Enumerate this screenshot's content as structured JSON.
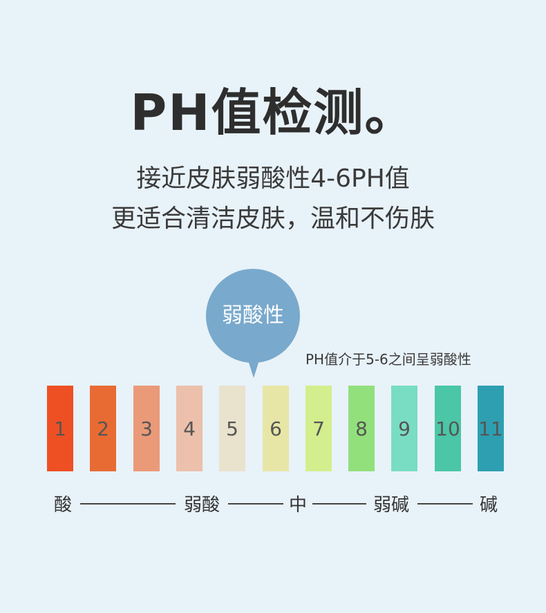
{
  "title": "PH值检测。",
  "subtitle_lines": [
    "接近皮肤弱酸性4-6PH值",
    "更适合清洁皮肤，温和不伤肤"
  ],
  "bubble": {
    "label": "弱酸性",
    "color": "#79a9cc"
  },
  "note": "PH值介于5-6之间呈弱酸性",
  "strips": [
    {
      "value": "1",
      "color": "#ee5024"
    },
    {
      "value": "2",
      "color": "#e86b33"
    },
    {
      "value": "3",
      "color": "#ea9a78"
    },
    {
      "value": "4",
      "color": "#ecc0aa"
    },
    {
      "value": "5",
      "color": "#e9e2cd"
    },
    {
      "value": "6",
      "color": "#e8e6a6"
    },
    {
      "value": "7",
      "color": "#d3ee8d"
    },
    {
      "value": "8",
      "color": "#92e07c"
    },
    {
      "value": "9",
      "color": "#79ddc3"
    },
    {
      "value": "10",
      "color": "#4bc6a6"
    },
    {
      "value": "11",
      "color": "#2d9fb1"
    }
  ],
  "scale_labels": [
    "酸",
    "弱酸",
    "中",
    "弱碱",
    "碱"
  ]
}
